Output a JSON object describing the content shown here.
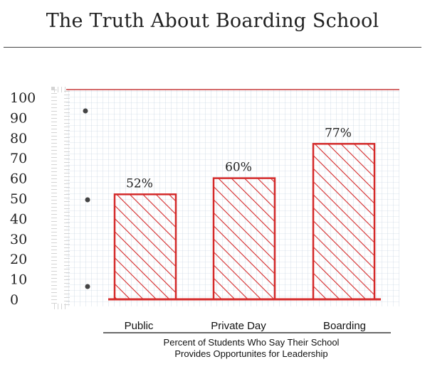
{
  "header": {
    "title": "The Truth About Boarding School"
  },
  "chart_data": {
    "type": "bar",
    "title": "The Truth About Boarding School",
    "categories": [
      "Public",
      "Private Day",
      "Boarding"
    ],
    "values": [
      52,
      60,
      77
    ],
    "value_labels": [
      "52%",
      "60%",
      "77%"
    ],
    "xlabel_lines": [
      "Percent of Students Who Say Their School",
      "Provides Opportunites for Leadership"
    ],
    "ylabel": "",
    "ylim": [
      0,
      100
    ],
    "yticks": [
      "100",
      "90",
      "80",
      "70",
      "60",
      "50",
      "40",
      "30",
      "20",
      "10",
      "0"
    ],
    "grid": true,
    "bar_color": "#d42a2a",
    "grid_color": "#b9c9dc"
  }
}
